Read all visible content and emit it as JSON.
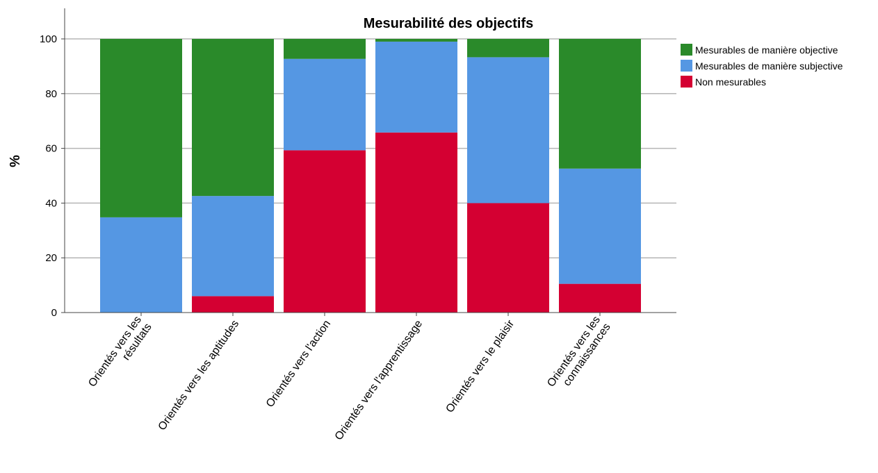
{
  "chart_data": {
    "type": "bar",
    "stacked": true,
    "title": "Mesurabilité des objectifs",
    "xlabel": "",
    "ylabel": "%",
    "ylim": [
      0,
      100
    ],
    "yticks": [
      "0",
      "20",
      "40",
      "60",
      "80",
      "100"
    ],
    "grid": "horizontal",
    "legend_position": "right",
    "categories": [
      [
        "Orientés vers les",
        "résultats"
      ],
      [
        "Orientés vers les aptitudes"
      ],
      [
        "Orientés vers l'action"
      ],
      [
        "Orientés vers l'apprentissage"
      ],
      [
        "Orientés vers le plaisir"
      ],
      [
        "Orientés vers les",
        "connaissances"
      ]
    ],
    "series": [
      {
        "name": "Non mesurables",
        "color": "#d40032",
        "values": [
          0,
          6,
          59.3,
          65.8,
          40,
          10.5
        ]
      },
      {
        "name": "Mesurables de manière subjective",
        "color": "#5597e3",
        "values": [
          34.8,
          36.6,
          33.4,
          33.2,
          53.3,
          42.1
        ]
      },
      {
        "name": "Mesurables de manière objective",
        "color": "#2a8a2a",
        "values": [
          65.2,
          57.4,
          7.3,
          1.0,
          6.7,
          47.4
        ]
      }
    ],
    "legend_order": [
      "Mesurables de manière objective",
      "Mesurables de manière subjective",
      "Non mesurables"
    ]
  }
}
